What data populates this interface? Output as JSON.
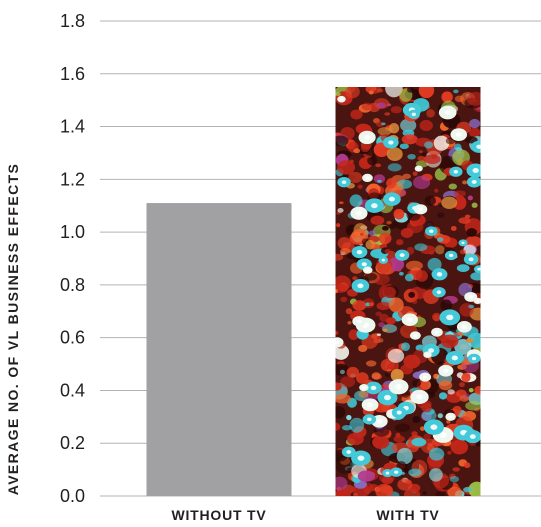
{
  "chart_data": {
    "type": "bar",
    "title": "",
    "xlabel": "",
    "ylabel": "AVERAGE NO. OF VL BUSINESS EFFECTS",
    "categories": [
      "WITHOUT TV",
      "WITH TV"
    ],
    "values": [
      1.11,
      1.55
    ],
    "ylim": [
      0,
      1.8
    ],
    "yticks": [
      "0.0",
      "0.2",
      "0.4",
      "0.6",
      "0.8",
      "1.0",
      "1.2",
      "1.4",
      "1.6",
      "1.8"
    ],
    "grid": true,
    "legend": "none",
    "bar_fills": [
      "solid-gray",
      "multicolor-photo-texture"
    ],
    "colors": {
      "bar_gray": "#a1a1a4",
      "gridline": "#b3b3b3",
      "text": "#231f20",
      "texture_base": "#4a1410",
      "texture_dots": [
        "#e23b22",
        "#c2261a",
        "#f0662e",
        "#3fc7d6",
        "#7fe0e6",
        "#f4f6f0",
        "#8a6ac2",
        "#b03a8e",
        "#d98a3a",
        "#2a0806",
        "#9ec84a"
      ]
    }
  }
}
